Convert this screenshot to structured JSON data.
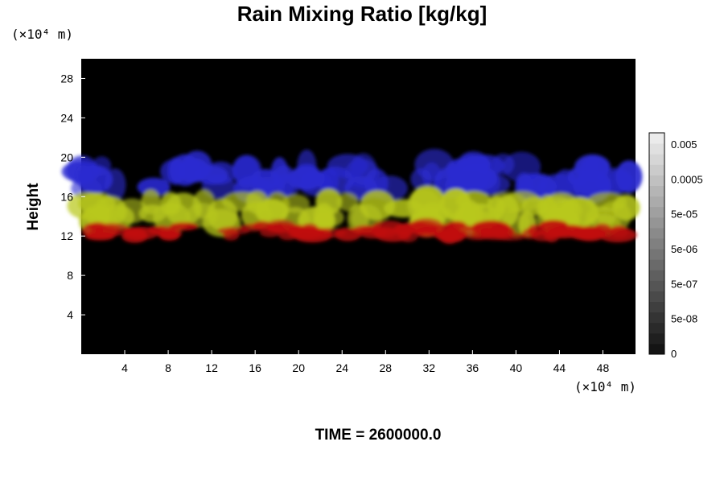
{
  "chart_data": {
    "type": "heatmap",
    "title": "Rain Mixing Ratio [kg/kg]",
    "ylabel": "Height",
    "x_unit": "(×10⁴ m)",
    "y_unit": "(×10⁴ m)",
    "x_ticks": [
      "4",
      "8",
      "12",
      "16",
      "20",
      "24",
      "28",
      "32",
      "36",
      "40",
      "44",
      "48"
    ],
    "y_ticks": [
      "4",
      "8",
      "12",
      "16",
      "20",
      "24",
      "28"
    ],
    "xlim": [
      0,
      51
    ],
    "ylim": [
      0,
      30
    ],
    "colorbar": {
      "labels": [
        "0.005",
        "0.0005",
        "5e-05",
        "5e-06",
        "5e-07",
        "5e-08",
        "0"
      ]
    },
    "bands": [
      {
        "color": "#2a2ad0",
        "y_center": 18.0,
        "thickness": 2.6
      },
      {
        "color": "#b8c81c",
        "y_center": 14.3,
        "thickness": 2.6
      },
      {
        "color": "#c01010",
        "y_center": 12.5,
        "thickness": 1.2
      }
    ],
    "time_label": "TIME = 2600000.0"
  }
}
